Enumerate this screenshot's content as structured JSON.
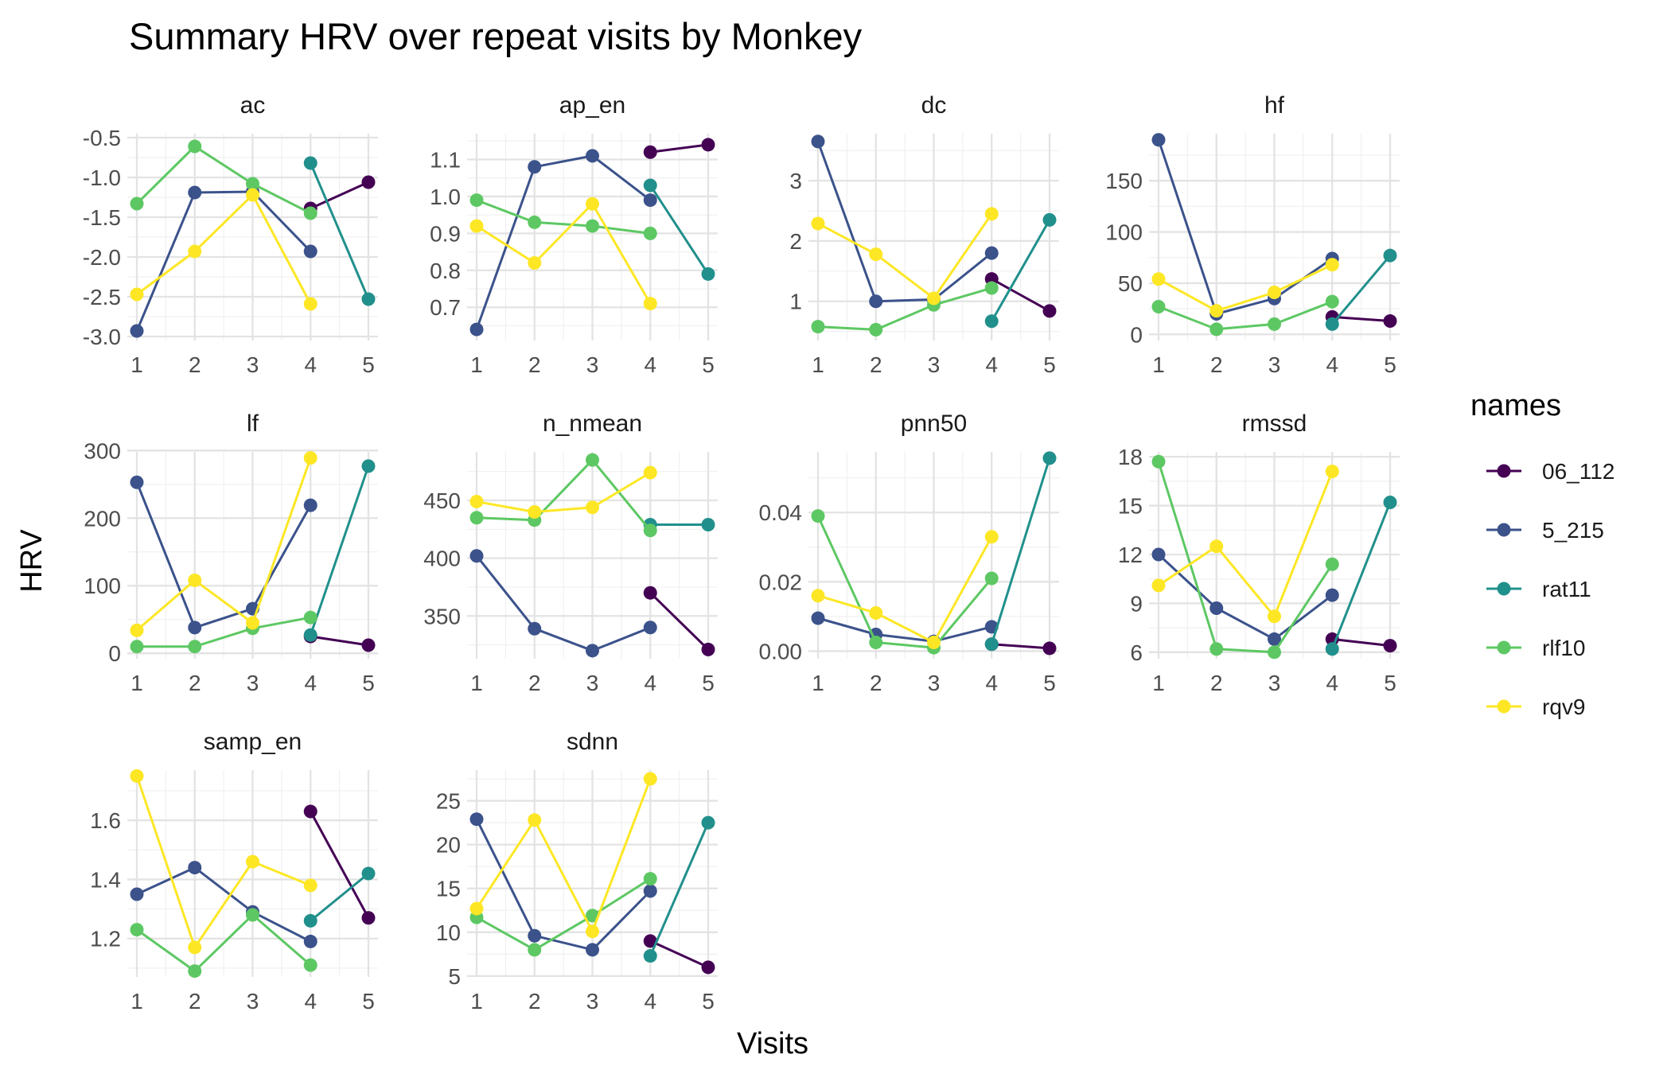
{
  "chart_data": {
    "type": "line",
    "title": "Summary HRV over repeat visits by Monkey",
    "xlabel": "Visits",
    "ylabel": "HRV",
    "legend": {
      "title": "names",
      "placement": "right"
    },
    "x": [
      1,
      2,
      3,
      4,
      5
    ],
    "series": [
      {
        "name": "06_112",
        "color": "#440154"
      },
      {
        "name": "5_215",
        "color": "#3B528B"
      },
      {
        "name": "rat11",
        "color": "#21908C"
      },
      {
        "name": "rlf10",
        "color": "#5DC863"
      },
      {
        "name": "rqv9",
        "color": "#FDE725"
      }
    ],
    "panels": [
      {
        "facet": "ac",
        "ylim": [
          -3.05,
          -0.45
        ],
        "yticks": [
          -3.0,
          -2.5,
          -2.0,
          -1.5,
          -1.0,
          -0.5
        ],
        "ytick_labels": [
          "-3.0",
          "-2.5",
          "-2.0",
          "-1.5",
          "-1.0",
          "-0.5"
        ],
        "values": {
          "06_112": [
            null,
            null,
            null,
            -1.39,
            -1.06
          ],
          "5_215": [
            -2.93,
            -1.19,
            -1.18,
            -1.93,
            null
          ],
          "rat11": [
            null,
            null,
            null,
            -0.82,
            -2.53
          ],
          "rlf10": [
            -1.33,
            -0.61,
            -1.08,
            -1.45,
            null
          ],
          "rqv9": [
            -2.47,
            -1.93,
            -1.22,
            -2.59,
            null
          ]
        }
      },
      {
        "facet": "ap_en",
        "ylim": [
          0.61,
          1.17
        ],
        "yticks": [
          0.7,
          0.8,
          0.9,
          1.0,
          1.1
        ],
        "ytick_labels": [
          "0.7",
          "0.8",
          "0.9",
          "1.0",
          "1.1"
        ],
        "values": {
          "06_112": [
            null,
            null,
            null,
            1.12,
            1.14
          ],
          "5_215": [
            0.64,
            1.08,
            1.11,
            0.99,
            null
          ],
          "rat11": [
            null,
            null,
            null,
            1.03,
            0.79
          ],
          "rlf10": [
            0.99,
            0.93,
            0.92,
            0.9,
            null
          ],
          "rqv9": [
            0.92,
            0.82,
            0.98,
            0.71,
            null
          ]
        }
      },
      {
        "facet": "dc",
        "ylim": [
          0.35,
          3.78
        ],
        "yticks": [
          1,
          2,
          3
        ],
        "ytick_labels": [
          "1",
          "2",
          "3"
        ],
        "values": {
          "06_112": [
            null,
            null,
            null,
            1.37,
            0.84
          ],
          "5_215": [
            3.65,
            1.0,
            1.03,
            1.8,
            null
          ],
          "rat11": [
            null,
            null,
            null,
            0.67,
            2.35
          ],
          "rlf10": [
            0.58,
            0.53,
            0.94,
            1.22,
            null
          ],
          "rqv9": [
            2.29,
            1.78,
            1.05,
            2.45,
            null
          ]
        }
      },
      {
        "facet": "hf",
        "ylim": [
          -6,
          196
        ],
        "yticks": [
          0,
          50,
          100,
          150
        ],
        "ytick_labels": [
          "0",
          "50",
          "100",
          "150"
        ],
        "values": {
          "06_112": [
            null,
            null,
            null,
            17,
            13
          ],
          "5_215": [
            190,
            20,
            35,
            74,
            null
          ],
          "rat11": [
            null,
            null,
            null,
            10,
            77
          ],
          "rlf10": [
            27,
            5,
            10,
            32,
            null
          ],
          "rqv9": [
            54,
            23,
            41,
            68,
            null
          ]
        }
      },
      {
        "facet": "lf",
        "ylim": [
          -8,
          298
        ],
        "yticks": [
          0,
          100,
          200,
          300
        ],
        "ytick_labels": [
          "0",
          "100",
          "200",
          "300"
        ],
        "values": {
          "06_112": [
            null,
            null,
            null,
            25,
            12
          ],
          "5_215": [
            253,
            38,
            66,
            219,
            null
          ],
          "rat11": [
            null,
            null,
            null,
            27,
            277
          ],
          "rlf10": [
            10,
            10,
            37,
            53,
            null
          ],
          "rqv9": [
            34,
            108,
            45,
            289,
            null
          ]
        }
      },
      {
        "facet": "n_nmean",
        "ylim": [
          313,
          492
        ],
        "yticks": [
          350,
          400,
          450
        ],
        "ytick_labels": [
          "350",
          "400",
          "450"
        ],
        "values": {
          "06_112": [
            null,
            null,
            null,
            370,
            321
          ],
          "5_215": [
            402,
            339,
            320,
            340,
            null
          ],
          "rat11": [
            null,
            null,
            null,
            429,
            429
          ],
          "rlf10": [
            435,
            433,
            485,
            424,
            null
          ],
          "rqv9": [
            449,
            440,
            444,
            474,
            null
          ]
        }
      },
      {
        "facet": "pnn50",
        "ylim": [
          -0.0022,
          0.0575
        ],
        "yticks": [
          0.0,
          0.02,
          0.04
        ],
        "ytick_labels": [
          "0.00",
          "0.02",
          "0.04"
        ],
        "values": {
          "06_112": [
            null,
            null,
            null,
            0.002,
            0.0008
          ],
          "5_215": [
            0.0095,
            0.0048,
            0.0028,
            0.007,
            null
          ],
          "rat11": [
            null,
            null,
            null,
            0.002,
            0.0557
          ],
          "rlf10": [
            0.039,
            0.0025,
            0.001,
            0.021,
            null
          ],
          "rqv9": [
            0.016,
            0.011,
            0.0025,
            0.033,
            null
          ]
        }
      },
      {
        "facet": "rmssd",
        "ylim": [
          5.6,
          18.3
        ],
        "yticks": [
          6,
          9,
          12,
          15,
          18
        ],
        "ytick_labels": [
          "6",
          "9",
          "12",
          "15",
          "18"
        ],
        "values": {
          "06_112": [
            null,
            null,
            null,
            6.8,
            6.4
          ],
          "5_215": [
            12.0,
            8.7,
            6.8,
            9.5,
            null
          ],
          "rat11": [
            null,
            null,
            null,
            6.2,
            15.2
          ],
          "rlf10": [
            17.7,
            6.2,
            6.0,
            11.4,
            null
          ],
          "rqv9": [
            10.1,
            12.5,
            8.2,
            17.1,
            null
          ]
        }
      },
      {
        "facet": "samp_en",
        "ylim": [
          1.07,
          1.77
        ],
        "yticks": [
          1.2,
          1.4,
          1.6
        ],
        "ytick_labels": [
          "1.2",
          "1.4",
          "1.6"
        ],
        "values": {
          "06_112": [
            null,
            null,
            null,
            1.63,
            1.27
          ],
          "5_215": [
            1.35,
            1.44,
            1.29,
            1.19,
            null
          ],
          "rat11": [
            null,
            null,
            null,
            1.26,
            1.42
          ],
          "rlf10": [
            1.23,
            1.09,
            1.28,
            1.11,
            null
          ],
          "rqv9": [
            1.75,
            1.17,
            1.46,
            1.38,
            null
          ]
        }
      },
      {
        "facet": "sdnn",
        "ylim": [
          4.9,
          28.5
        ],
        "yticks": [
          5,
          10,
          15,
          20,
          25
        ],
        "ytick_labels": [
          "5",
          "10",
          "15",
          "20",
          "25"
        ],
        "values": {
          "06_112": [
            null,
            null,
            null,
            9.0,
            6.0
          ],
          "5_215": [
            22.9,
            9.6,
            8.0,
            14.7,
            null
          ],
          "rat11": [
            null,
            null,
            null,
            7.3,
            22.5
          ],
          "rlf10": [
            11.7,
            8.0,
            11.9,
            16.1,
            null
          ],
          "rqv9": [
            12.7,
            22.8,
            10.1,
            27.5,
            null
          ]
        }
      }
    ]
  }
}
